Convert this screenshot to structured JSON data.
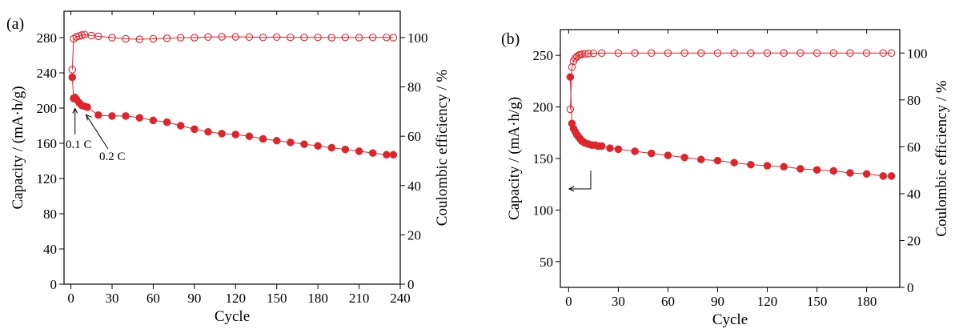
{
  "chart_data": [
    {
      "type": "scatter",
      "panel_label": "(a)",
      "xlabel": "Cycle",
      "ylabel_left": "Capacity / (mA·h/g)",
      "ylabel_right": "Coulombic efficiency / %",
      "xlim": [
        -5,
        240
      ],
      "ylim_left": [
        0,
        310
      ],
      "ylim_right": [
        0,
        110.7
      ],
      "xticks": [
        0,
        30,
        60,
        90,
        120,
        150,
        180,
        210,
        240
      ],
      "yticks_left": [
        0,
        40,
        80,
        120,
        160,
        200,
        240,
        280
      ],
      "yticks_right": [
        0,
        20,
        40,
        60,
        80,
        100
      ],
      "marker_color": "#e0242c",
      "annotations": [
        {
          "text": "0.1 C",
          "target": [
            3,
            205
          ]
        },
        {
          "text": "0.2 C",
          "target": [
            11,
            197
          ]
        }
      ],
      "series": [
        {
          "axis": "left",
          "fill": true,
          "x": [
            1,
            2,
            3,
            4,
            6,
            8,
            10,
            12,
            20,
            30,
            40,
            50,
            60,
            70,
            80,
            90,
            100,
            110,
            120,
            130,
            140,
            150,
            160,
            170,
            180,
            190,
            200,
            210,
            220,
            230,
            235
          ],
          "values": [
            235,
            211,
            212,
            210,
            206,
            203,
            202,
            201,
            192,
            191,
            191,
            189,
            186,
            184,
            180,
            176,
            173,
            171,
            170,
            168,
            165,
            163,
            161,
            159,
            157,
            155,
            153,
            151,
            149,
            147,
            147
          ]
        },
        {
          "axis": "right",
          "fill": false,
          "x": [
            1,
            2,
            4,
            6,
            8,
            10,
            15,
            20,
            30,
            40,
            50,
            60,
            70,
            80,
            90,
            100,
            110,
            120,
            130,
            140,
            150,
            160,
            170,
            180,
            190,
            200,
            210,
            220,
            230,
            235
          ],
          "values": [
            87,
            99.5,
            100.3,
            100.6,
            101,
            101.2,
            100.8,
            100.5,
            100,
            99.5,
            99.3,
            99.5,
            99.7,
            100,
            100,
            100.2,
            100.3,
            100.3,
            100.2,
            100.1,
            100.2,
            100.1,
            100.1,
            100.1,
            100,
            100.1,
            100,
            100.1,
            100.1,
            100
          ]
        }
      ]
    },
    {
      "type": "scatter",
      "panel_label": "(b)",
      "xlabel": "Cycle",
      "ylabel_left": "Capacity / (mA·h/g)",
      "ylabel_right": "Coulombic efficiency / %",
      "xlim": [
        -5,
        200
      ],
      "ylim_left": [
        25,
        275
      ],
      "ylim_right": [
        0,
        110
      ],
      "xticks": [
        0,
        30,
        60,
        90,
        120,
        150,
        180
      ],
      "yticks_left": [
        50,
        100,
        150,
        200,
        250
      ],
      "yticks_right": [
        0,
        20,
        40,
        60,
        80,
        100
      ],
      "marker_color": "#e0242c",
      "series": [
        {
          "axis": "left",
          "fill": true,
          "x": [
            1,
            2,
            3,
            4,
            5,
            6,
            7,
            8,
            9,
            10,
            12,
            14,
            16,
            18,
            20,
            25,
            30,
            40,
            50,
            60,
            70,
            80,
            90,
            100,
            110,
            120,
            130,
            140,
            150,
            160,
            170,
            180,
            190,
            195
          ],
          "values": [
            229,
            184,
            179,
            176,
            173,
            171,
            169,
            167,
            166,
            165,
            164,
            163,
            163,
            162,
            162,
            160,
            159,
            157,
            155,
            153,
            151,
            149,
            148,
            146,
            144,
            143,
            142,
            140,
            139,
            138,
            136,
            135,
            133,
            133
          ]
        },
        {
          "axis": "right",
          "fill": false,
          "x": [
            1,
            2,
            3,
            4,
            5,
            6,
            7,
            8,
            10,
            12,
            15,
            20,
            30,
            40,
            50,
            60,
            70,
            80,
            90,
            100,
            110,
            120,
            130,
            140,
            150,
            160,
            170,
            180,
            190,
            195
          ],
          "values": [
            76,
            94,
            96.5,
            97.8,
            98.5,
            99,
            99.3,
            99.5,
            99.7,
            99.8,
            99.9,
            100,
            100,
            100,
            100,
            100,
            100,
            100,
            100,
            100,
            100,
            100,
            100,
            100,
            100,
            100,
            100,
            100,
            100,
            100
          ]
        }
      ]
    }
  ]
}
